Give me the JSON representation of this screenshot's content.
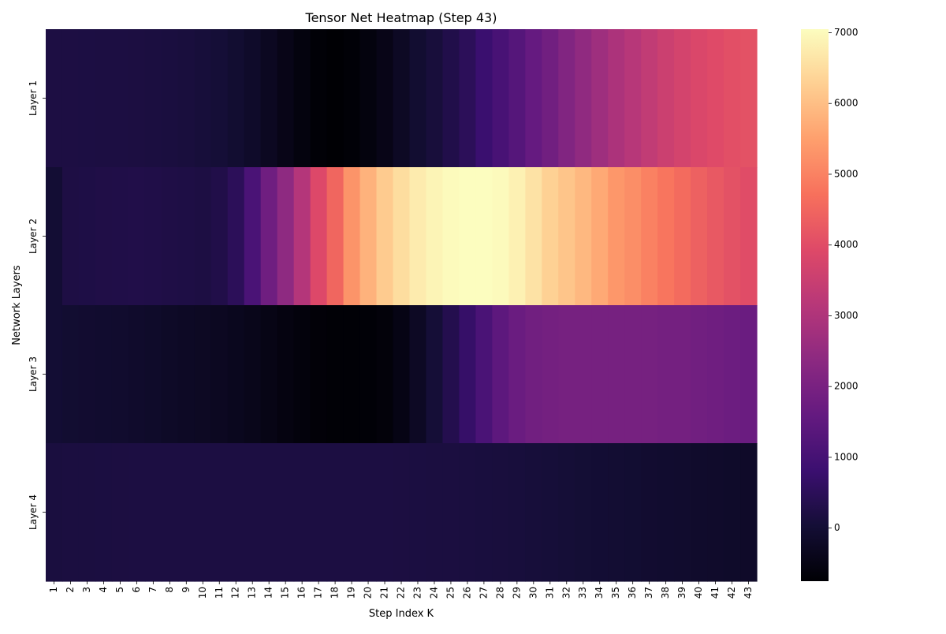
{
  "chart_data": {
    "type": "heatmap",
    "title": "Tensor Net Heatmap (Step 43)",
    "xlabel": "Step Index K",
    "ylabel": "Network Layers",
    "rows": [
      "Layer 1",
      "Layer 2",
      "Layer 3",
      "Layer 4"
    ],
    "columns": [
      "1",
      "2",
      "3",
      "4",
      "5",
      "6",
      "7",
      "8",
      "9",
      "10",
      "11",
      "12",
      "13",
      "14",
      "15",
      "16",
      "17",
      "18",
      "19",
      "20",
      "21",
      "22",
      "23",
      "24",
      "25",
      "26",
      "27",
      "28",
      "29",
      "30",
      "31",
      "32",
      "33",
      "34",
      "35",
      "36",
      "37",
      "38",
      "39",
      "40",
      "41",
      "42",
      "43"
    ],
    "values": [
      [
        210,
        205,
        200,
        195,
        190,
        180,
        170,
        150,
        130,
        90,
        40,
        -50,
        -150,
        -300,
        -450,
        -600,
        -700,
        -750,
        -700,
        -600,
        -450,
        -250,
        -50,
        100,
        300,
        500,
        800,
        1050,
        1300,
        1600,
        1850,
        2150,
        2450,
        2700,
        2950,
        3150,
        3350,
        3550,
        3700,
        3850,
        3950,
        4050,
        4100
      ],
      [
        0,
        220,
        240,
        260,
        270,
        280,
        270,
        250,
        230,
        210,
        280,
        500,
        1100,
        1800,
        2400,
        3100,
        3900,
        4500,
        5300,
        5800,
        6200,
        6500,
        6750,
        6900,
        7000,
        7050,
        7100,
        7000,
        6850,
        6600,
        6300,
        6100,
        5900,
        5650,
        5350,
        5200,
        5000,
        4800,
        4600,
        4400,
        4250,
        4100,
        4000
      ],
      [
        0,
        -50,
        -60,
        -80,
        -100,
        -120,
        -150,
        -200,
        -230,
        -260,
        -300,
        -350,
        -400,
        -480,
        -560,
        -620,
        -680,
        -720,
        -720,
        -700,
        -650,
        -500,
        -250,
        50,
        350,
        700,
        1100,
        1450,
        1700,
        1850,
        1900,
        1950,
        1950,
        1950,
        1950,
        1950,
        1950,
        1900,
        1900,
        1850,
        1800,
        1750,
        1700
      ],
      [
        150,
        160,
        170,
        175,
        180,
        185,
        190,
        190,
        190,
        195,
        195,
        195,
        195,
        195,
        195,
        195,
        195,
        195,
        195,
        190,
        185,
        180,
        175,
        170,
        160,
        150,
        140,
        125,
        110,
        90,
        70,
        50,
        20,
        0,
        -20,
        -40,
        -60,
        -80,
        -100,
        -120,
        -140,
        -160,
        -180
      ]
    ],
    "colormap": "magma",
    "vmin": -750,
    "vmax": 7050,
    "colorbar_ticks": [
      0,
      1000,
      2000,
      3000,
      4000,
      5000,
      6000,
      7000
    ],
    "colorbar_tick_labels": [
      "0",
      "1000",
      "2000",
      "3000",
      "4000",
      "5000",
      "6000",
      "7000"
    ],
    "grid": false
  }
}
